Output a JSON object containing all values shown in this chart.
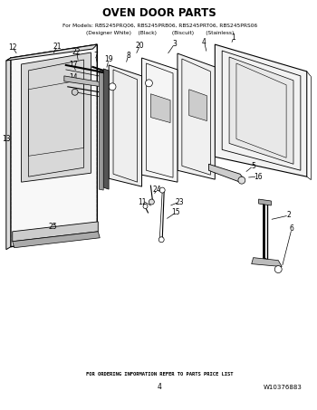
{
  "title": "OVEN DOOR PARTS",
  "subtitle_line1": "For Models: RBS245PRQ06, RBS245PRB06, RBS245PRT06, RBS245PRS06",
  "subtitle_line2": "(Designer White)    (Black)         (Biscuit)       (Stainless)",
  "footer_center": "FOR ORDERING INFORMATION REFER TO PARTS PRICE LIST",
  "footer_page": "4",
  "footer_right": "W10376883",
  "bg_color": "#ffffff"
}
